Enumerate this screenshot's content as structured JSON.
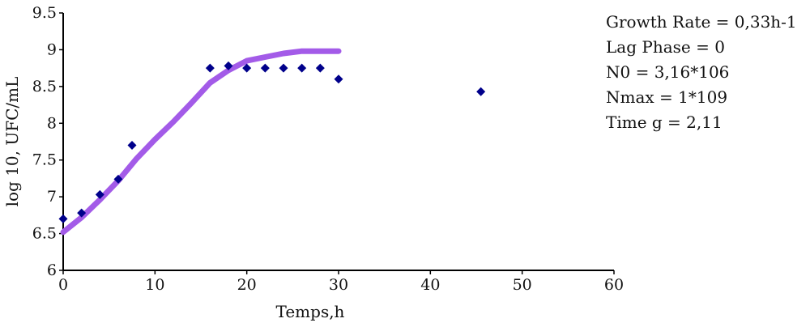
{
  "chart_data": {
    "type": "scatter",
    "xlabel": "Temps,h",
    "ylabel": "log 10, UFC/mL",
    "xlim": [
      0,
      60
    ],
    "ylim": [
      6,
      9.5
    ],
    "x_ticks": [
      "0",
      "10",
      "20",
      "30",
      "40",
      "50",
      "60"
    ],
    "y_ticks": [
      "6",
      "6.5",
      "7",
      "7.5",
      "8",
      "8.5",
      "9",
      "9.5"
    ],
    "grid": false,
    "annotations": [
      "Growth Rate = 0,33h-1",
      "Lag Phase = 0",
      "N0 = 3,16*106",
      "Nmax = 1*109",
      "Time g = 2,11"
    ],
    "series": [
      {
        "kind": "points",
        "color": "#00008B",
        "marker": "diamond",
        "x": [
          0,
          2,
          4,
          6,
          7.5,
          16,
          18,
          20,
          22,
          24,
          26,
          28,
          30,
          45.5
        ],
        "y": [
          6.7,
          6.78,
          7.03,
          7.24,
          7.7,
          8.75,
          8.78,
          8.75,
          8.75,
          8.75,
          8.75,
          8.75,
          8.6,
          8.43
        ]
      },
      {
        "kind": "line",
        "color": "#A35BE8",
        "x": [
          0,
          2,
          4,
          6,
          8,
          10,
          12,
          14,
          16,
          18,
          20,
          22,
          24,
          26,
          28,
          30
        ],
        "y": [
          6.52,
          6.72,
          6.96,
          7.22,
          7.52,
          7.78,
          8.02,
          8.28,
          8.55,
          8.72,
          8.85,
          8.9,
          8.95,
          8.98,
          8.98,
          8.98
        ]
      }
    ]
  }
}
